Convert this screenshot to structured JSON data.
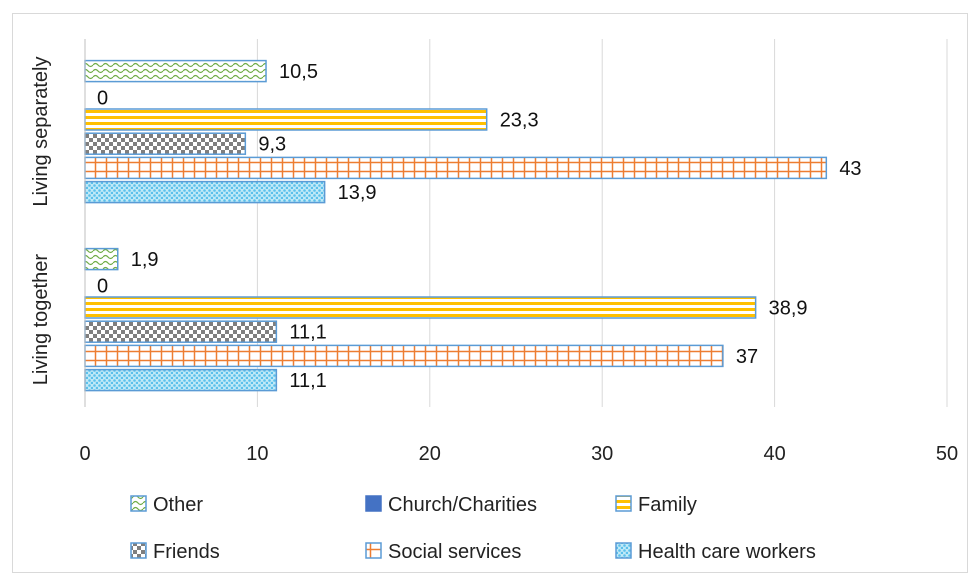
{
  "chart_data": {
    "type": "bar",
    "orientation": "horizontal",
    "categories": [
      "Living separately",
      "Living together"
    ],
    "series": [
      {
        "name": "Other",
        "values": [
          10.5,
          1.9
        ],
        "labels": [
          "10,5",
          "1,9"
        ],
        "color": "#70ad47",
        "pattern": "wavy"
      },
      {
        "name": "Church/Charities",
        "values": [
          0,
          0
        ],
        "labels": [
          "0",
          "0"
        ],
        "color": "#4472c4",
        "pattern": "solid"
      },
      {
        "name": "Family",
        "values": [
          23.3,
          38.9
        ],
        "labels": [
          "23,3",
          "38,9"
        ],
        "color": "#ffc000",
        "pattern": "hlines"
      },
      {
        "name": "Friends",
        "values": [
          9.3,
          11.1
        ],
        "labels": [
          "9,3",
          "11,1"
        ],
        "color": "#7f7f7f",
        "pattern": "checker"
      },
      {
        "name": "Social services",
        "values": [
          43,
          37
        ],
        "labels": [
          "43",
          "37"
        ],
        "color": "#ed7d31",
        "pattern": "grid"
      },
      {
        "name": "Health care workers",
        "values": [
          13.9,
          11.1
        ],
        "labels": [
          "13,9",
          "11,1"
        ],
        "color": "#5bc0eb",
        "pattern": "dots"
      }
    ],
    "xlim": [
      0,
      50
    ],
    "xticks": [
      "0",
      "10",
      "20",
      "30",
      "40",
      "50"
    ],
    "grid": "vertical",
    "legend": "bottom",
    "bar_border_color": "#5b9bd5"
  }
}
